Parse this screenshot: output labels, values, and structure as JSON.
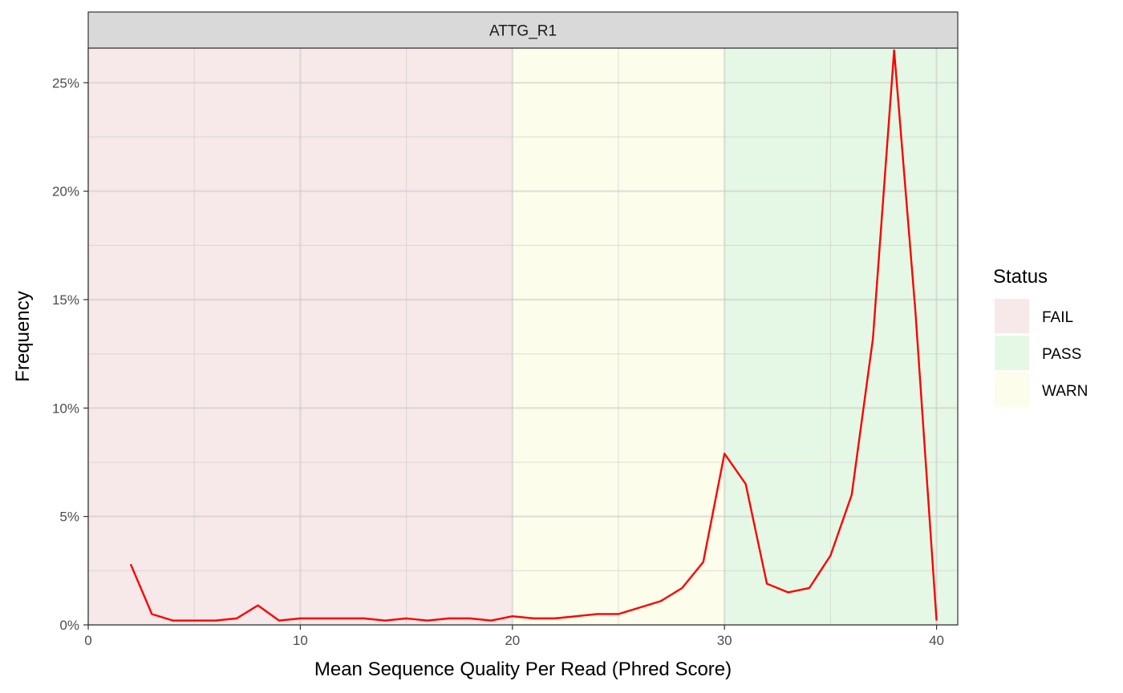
{
  "chart_data": {
    "type": "line",
    "panel_title": "ATTG_R1",
    "xlabel": "Mean Sequence Quality Per Read (Phred Score)",
    "ylabel": "Frequency",
    "xlim": [
      0,
      41
    ],
    "ylim": [
      0,
      0.266
    ],
    "x_ticks": [
      0,
      10,
      20,
      30,
      40
    ],
    "x_tick_labels": [
      "0",
      "10",
      "20",
      "30",
      "40"
    ],
    "y_ticks": [
      0,
      0.05,
      0.1,
      0.15,
      0.2,
      0.25
    ],
    "y_tick_labels": [
      "0%",
      "5%",
      "10%",
      "15%",
      "20%",
      "25%"
    ],
    "grid": true,
    "status_bands": [
      {
        "status": "FAIL",
        "from": 0,
        "to": 20,
        "color": "#f7e9e9"
      },
      {
        "status": "WARN",
        "from": 20,
        "to": 30,
        "color": "#fcfdea"
      },
      {
        "status": "PASS",
        "from": 30,
        "to": 41,
        "color": "#e5f8e5"
      }
    ],
    "legend": {
      "title": "Status",
      "position": "right",
      "items": [
        {
          "label": "FAIL",
          "color": "#f7e9e9"
        },
        {
          "label": "PASS",
          "color": "#e5f8e5"
        },
        {
          "label": "WARN",
          "color": "#fcfdea"
        }
      ]
    },
    "series": [
      {
        "color": "#ff0000",
        "x": [
          2,
          3,
          4,
          5,
          6,
          7,
          8,
          9,
          10,
          11,
          12,
          13,
          14,
          15,
          16,
          17,
          18,
          19,
          20,
          21,
          22,
          23,
          24,
          25,
          26,
          27,
          28,
          29,
          30,
          31,
          32,
          33,
          34,
          35,
          36,
          37,
          38,
          39,
          40
        ],
        "y": [
          0.028,
          0.005,
          0.002,
          0.002,
          0.002,
          0.003,
          0.009,
          0.002,
          0.003,
          0.003,
          0.003,
          0.003,
          0.002,
          0.003,
          0.002,
          0.003,
          0.003,
          0.002,
          0.004,
          0.003,
          0.003,
          0.004,
          0.005,
          0.005,
          0.008,
          0.011,
          0.017,
          0.029,
          0.079,
          0.065,
          0.019,
          0.015,
          0.017,
          0.032,
          0.06,
          0.132,
          0.265,
          0.145,
          0.002
        ]
      }
    ]
  }
}
